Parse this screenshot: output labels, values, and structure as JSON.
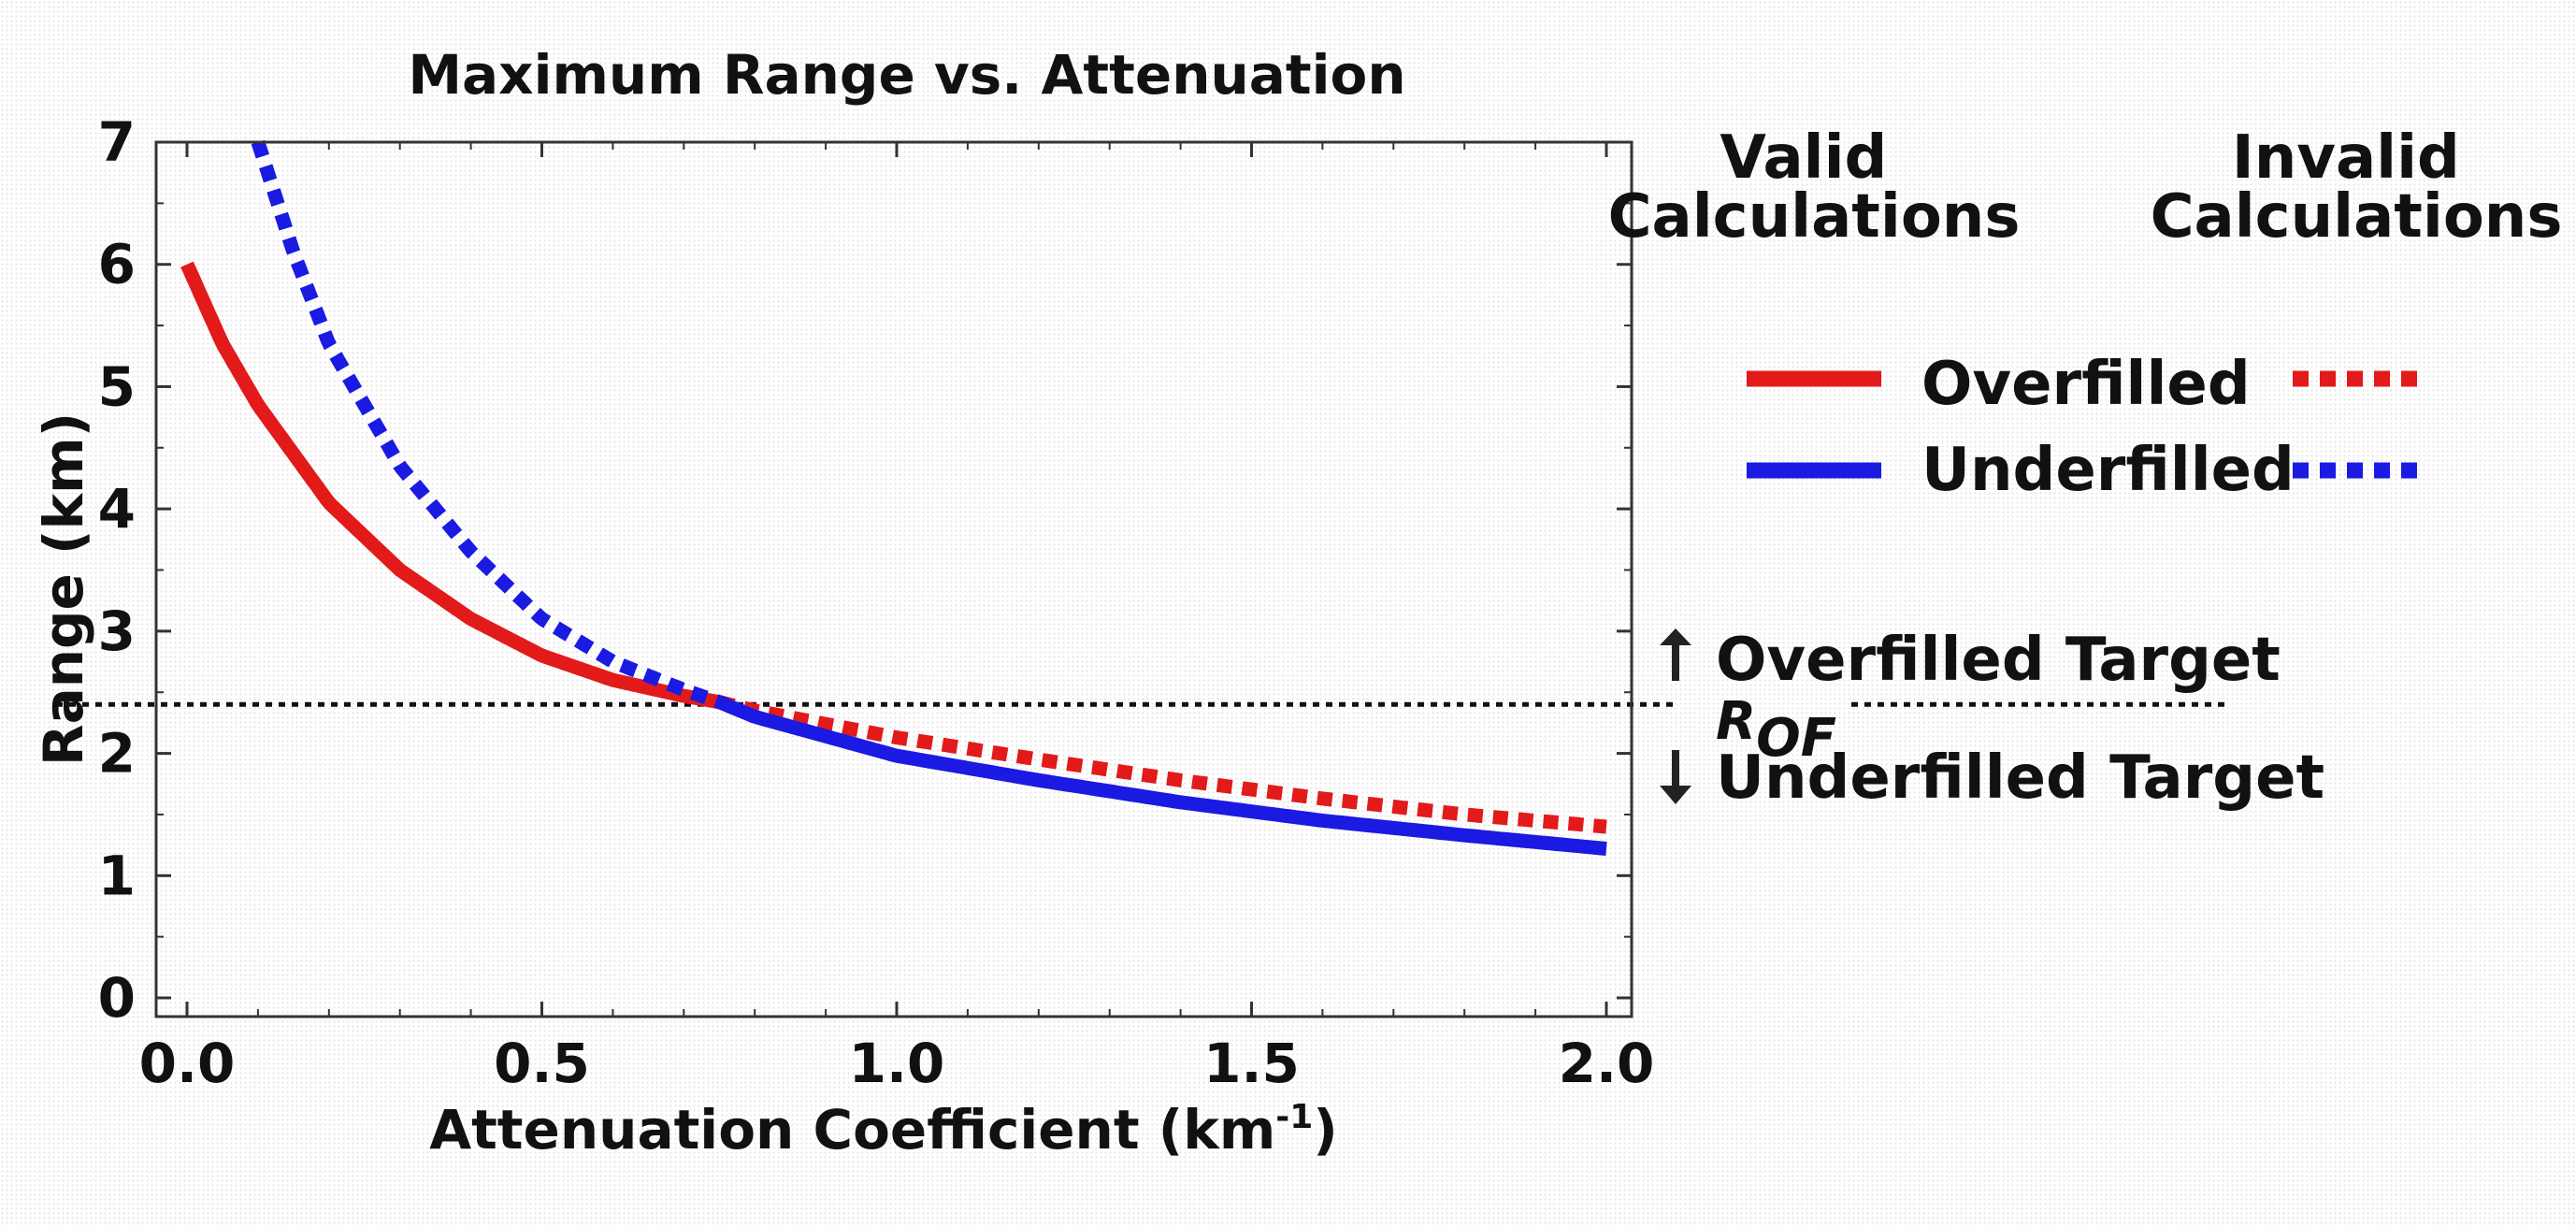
{
  "chart_data": {
    "type": "line",
    "title": "Maximum Range vs. Attenuation",
    "xlabel": "Attenuation Coefficient (km",
    "xlabel_sup": "-1",
    "xlabel_end": ")",
    "ylabel": "Range (km)",
    "xlim": [
      0.0,
      2.0
    ],
    "ylim": [
      0,
      7
    ],
    "x_ticks": [
      "0.0",
      "0.5",
      "1.0",
      "1.5",
      "2.0"
    ],
    "y_ticks": [
      "0",
      "1",
      "2",
      "3",
      "4",
      "5",
      "6",
      "7"
    ],
    "series": [
      {
        "name": "Overfilled",
        "color": "#e31a1a",
        "x": [
          0.0,
          0.05,
          0.1,
          0.2,
          0.3,
          0.4,
          0.5,
          0.6,
          0.7,
          0.75,
          0.8,
          1.0,
          1.2,
          1.4,
          1.6,
          1.8,
          2.0
        ],
        "y": [
          6.0,
          5.35,
          4.85,
          4.05,
          3.5,
          3.1,
          2.8,
          2.6,
          2.47,
          2.42,
          2.35,
          2.13,
          1.95,
          1.78,
          1.63,
          1.5,
          1.4
        ],
        "valid_range": [
          0.0,
          0.75
        ]
      },
      {
        "name": "Underfilled",
        "color": "#1a1ae3",
        "x": [
          0.1,
          0.15,
          0.2,
          0.3,
          0.4,
          0.5,
          0.6,
          0.7,
          0.75,
          0.8,
          1.0,
          1.2,
          1.4,
          1.6,
          1.8,
          2.0
        ],
        "y": [
          7.0,
          6.1,
          5.35,
          4.35,
          3.65,
          3.1,
          2.75,
          2.52,
          2.42,
          2.3,
          1.98,
          1.78,
          1.6,
          1.45,
          1.33,
          1.22
        ],
        "valid_range": [
          0.75,
          2.0
        ]
      }
    ],
    "reference_line": {
      "label": "R",
      "label_sub": "OF",
      "y": 2.4
    },
    "legend": {
      "valid_header": [
        "Valid",
        "Calculations"
      ],
      "invalid_header": [
        "Invalid",
        "Calculations"
      ],
      "entries": [
        "Overfilled",
        "Underfilled"
      ]
    },
    "annotations": {
      "above": "Overfilled Target",
      "below": "Underfilled Target"
    }
  }
}
